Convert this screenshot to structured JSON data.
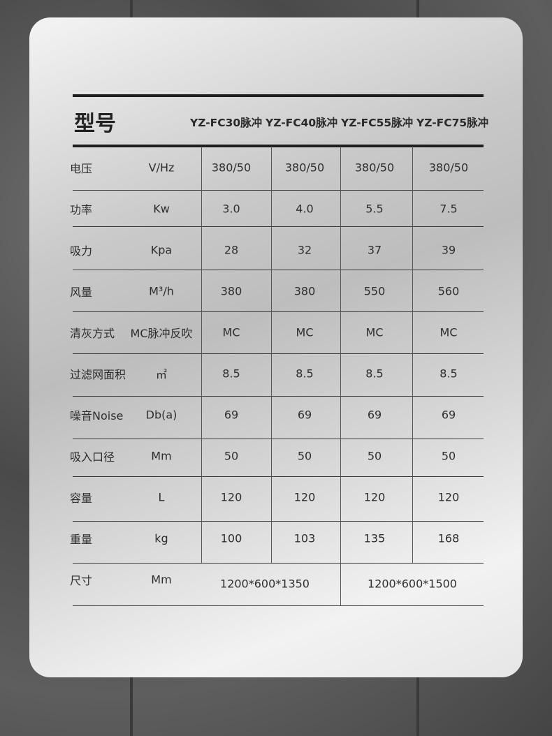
{
  "title": "型号",
  "models": [
    "YZ-FC30脉冲",
    "YZ-FC40脉冲",
    "YZ-FC55脉冲",
    "YZ-FC75脉冲"
  ],
  "rows": [
    {
      "label": "电压",
      "unit": "V/Hz",
      "values": [
        "380/50",
        "380/50",
        "380/50",
        "380/50"
      ]
    },
    {
      "label": "功率",
      "unit": "Kw",
      "values": [
        "3.0",
        "4.0",
        "5.5",
        "7.5"
      ]
    },
    {
      "label": "吸力",
      "unit": "Kpa",
      "values": [
        "28",
        "32",
        "37",
        "39"
      ]
    },
    {
      "label": "风量",
      "unit": "M³/h",
      "values": [
        "380",
        "380",
        "550",
        "560"
      ]
    },
    {
      "label": "清灰方式",
      "unit": "MC脉冲反吹",
      "values": [
        "MC",
        "MC",
        "MC",
        "MC"
      ]
    },
    {
      "label": "过滤网面积",
      "unit": "㎡",
      "values": [
        "8.5",
        "8.5",
        "8.5",
        "8.5"
      ]
    },
    {
      "label": "噪音Noise",
      "unit": "Db(a)",
      "values": [
        "69",
        "69",
        "69",
        "69"
      ]
    },
    {
      "label": "吸入口径",
      "unit": "Mm",
      "values": [
        "50",
        "50",
        "50",
        "50"
      ]
    },
    {
      "label": "容量",
      "unit": "L",
      "values": [
        "120",
        "120",
        "120",
        "120"
      ]
    },
    {
      "label": "重量",
      "unit": "kg",
      "values": [
        "100",
        "103",
        "135",
        "168"
      ]
    }
  ],
  "size_row": {
    "label": "尺寸",
    "unit": "Mm",
    "values": [
      "1200*600*1350",
      "1200*600*1500"
    ]
  }
}
